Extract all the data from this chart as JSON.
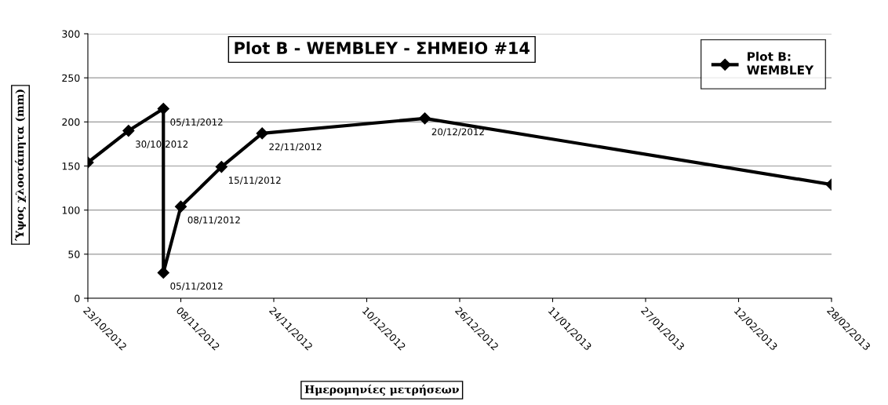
{
  "chart_data": {
    "type": "line",
    "title": "Plot B - WEMBLEY - ΣΗΜΕΙΟ #14",
    "xlabel": "Ημερομηνίες μετρήσεων",
    "ylabel": "Ύψος χλοοτάπητα (mm)",
    "x": [
      "2012-10-23",
      "2012-10-30",
      "2012-11-05",
      "2012-11-05",
      "2012-11-08",
      "2012-11-15",
      "2012-11-22",
      "2012-12-20",
      "2013-02-28"
    ],
    "series": [
      {
        "name": "Plot B: WEMBLEY",
        "color": "#000000",
        "values": [
          154,
          190,
          215,
          29,
          104,
          149,
          187,
          204,
          129
        ]
      }
    ],
    "annotations": [
      {
        "text": "30/10/2012",
        "x": "2012-10-30",
        "y": 190
      },
      {
        "text": "05/11/2012",
        "x": "2012-11-05",
        "y": 215
      },
      {
        "text": "05/11/2012",
        "x": "2012-11-05",
        "y": 29
      },
      {
        "text": "08/11/2012",
        "x": "2012-11-08",
        "y": 104
      },
      {
        "text": "15/11/2012",
        "x": "2012-11-15",
        "y": 149
      },
      {
        "text": "22/11/2012",
        "x": "2012-11-22",
        "y": 187
      },
      {
        "text": "20/12/2012",
        "x": "2012-12-20",
        "y": 204
      }
    ],
    "xlim": [
      "2012-10-23",
      "2013-02-28"
    ],
    "xticks": [
      {
        "value": "2012-10-23",
        "label": "23/10/2012"
      },
      {
        "value": "2012-11-08",
        "label": "08/11/2012"
      },
      {
        "value": "2012-11-24",
        "label": "24/11/2012"
      },
      {
        "value": "2012-12-10",
        "label": "10/12/2012"
      },
      {
        "value": "2012-12-26",
        "label": "26/12/2012"
      },
      {
        "value": "2013-01-11",
        "label": "11/01/2013"
      },
      {
        "value": "2013-01-27",
        "label": "27/01/2013"
      },
      {
        "value": "2013-02-12",
        "label": "12/02/2013"
      },
      {
        "value": "2013-02-28",
        "label": "28/02/2013"
      }
    ],
    "ylim": [
      0,
      300
    ],
    "yticks": [
      0,
      50,
      100,
      150,
      200,
      250,
      300
    ],
    "grid": "y",
    "legend": "top right",
    "marker": "diamond",
    "line_style": "solid"
  }
}
